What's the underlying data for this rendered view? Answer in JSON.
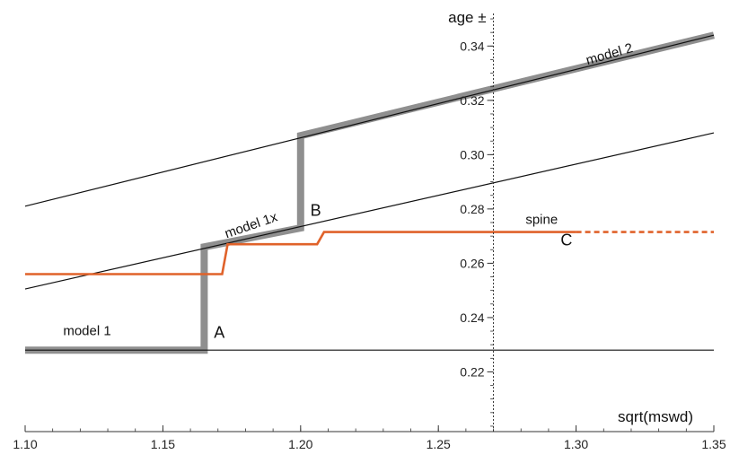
{
  "chart_data": {
    "type": "line",
    "xlabel": "sqrt(mswd)",
    "ylabel": "age ±",
    "xlim": [
      1.1,
      1.35
    ],
    "ylim": [
      0.198,
      0.352
    ],
    "x_ticks": [
      1.1,
      1.15,
      1.2,
      1.25,
      1.3,
      1.35
    ],
    "x_tick_labels": [
      "1.10",
      "1.15",
      "1.20",
      "1.25",
      "1.30",
      "1.35"
    ],
    "y_ticks": [
      0.22,
      0.24,
      0.26,
      0.28,
      0.3,
      0.32,
      0.34
    ],
    "y_tick_labels": [
      "0.22",
      "0.24",
      "0.26",
      "0.28",
      "0.30",
      "0.32",
      "0.34"
    ],
    "y_axis_at_x": 1.27,
    "grid": false,
    "colors": {
      "model": "#8f8f8f",
      "line": "#111111",
      "spine": "#e0622a"
    },
    "series": [
      {
        "style": "model",
        "x": [
          1.1,
          1.165,
          1.165,
          1.2,
          1.2,
          1.35
        ],
        "y": [
          0.228,
          0.228,
          0.266,
          0.273,
          0.307,
          0.344
        ]
      },
      {
        "style": "line",
        "x": [
          1.1,
          1.35
        ],
        "y": [
          0.228,
          0.228
        ]
      },
      {
        "style": "line",
        "x": [
          1.1,
          1.35
        ],
        "y": [
          0.2505,
          0.308
        ]
      },
      {
        "style": "line",
        "x": [
          1.1,
          1.35
        ],
        "y": [
          0.281,
          0.344
        ]
      },
      {
        "style": "spine",
        "x": [
          1.1,
          1.1715,
          1.1735,
          1.206,
          1.2085,
          1.3
        ],
        "y": [
          0.256,
          0.256,
          0.267,
          0.267,
          0.2715,
          0.2715
        ]
      },
      {
        "style": "spine-dashed",
        "x": [
          1.3,
          1.35
        ],
        "y": [
          0.2715,
          0.2715
        ]
      }
    ],
    "annotations": [
      {
        "text": "model 1",
        "x": 1.1225,
        "y": 0.2335,
        "rotate": 0,
        "kind": "label"
      },
      {
        "text": "model 1x",
        "x": 1.1825,
        "y": 0.2725,
        "rotate": -19,
        "kind": "label"
      },
      {
        "text": "model 2",
        "x": 1.3125,
        "y": 0.3355,
        "rotate": -16,
        "kind": "label"
      },
      {
        "text": "spine",
        "x": 1.2875,
        "y": 0.2745,
        "rotate": 0,
        "kind": "label"
      },
      {
        "text": "A",
        "x": 1.1705,
        "y": 0.2325,
        "rotate": 0,
        "kind": "letter"
      },
      {
        "text": "B",
        "x": 1.2055,
        "y": 0.2775,
        "rotate": 0,
        "kind": "letter"
      },
      {
        "text": "C",
        "x": 1.2965,
        "y": 0.2665,
        "rotate": 0,
        "kind": "letter"
      }
    ]
  }
}
